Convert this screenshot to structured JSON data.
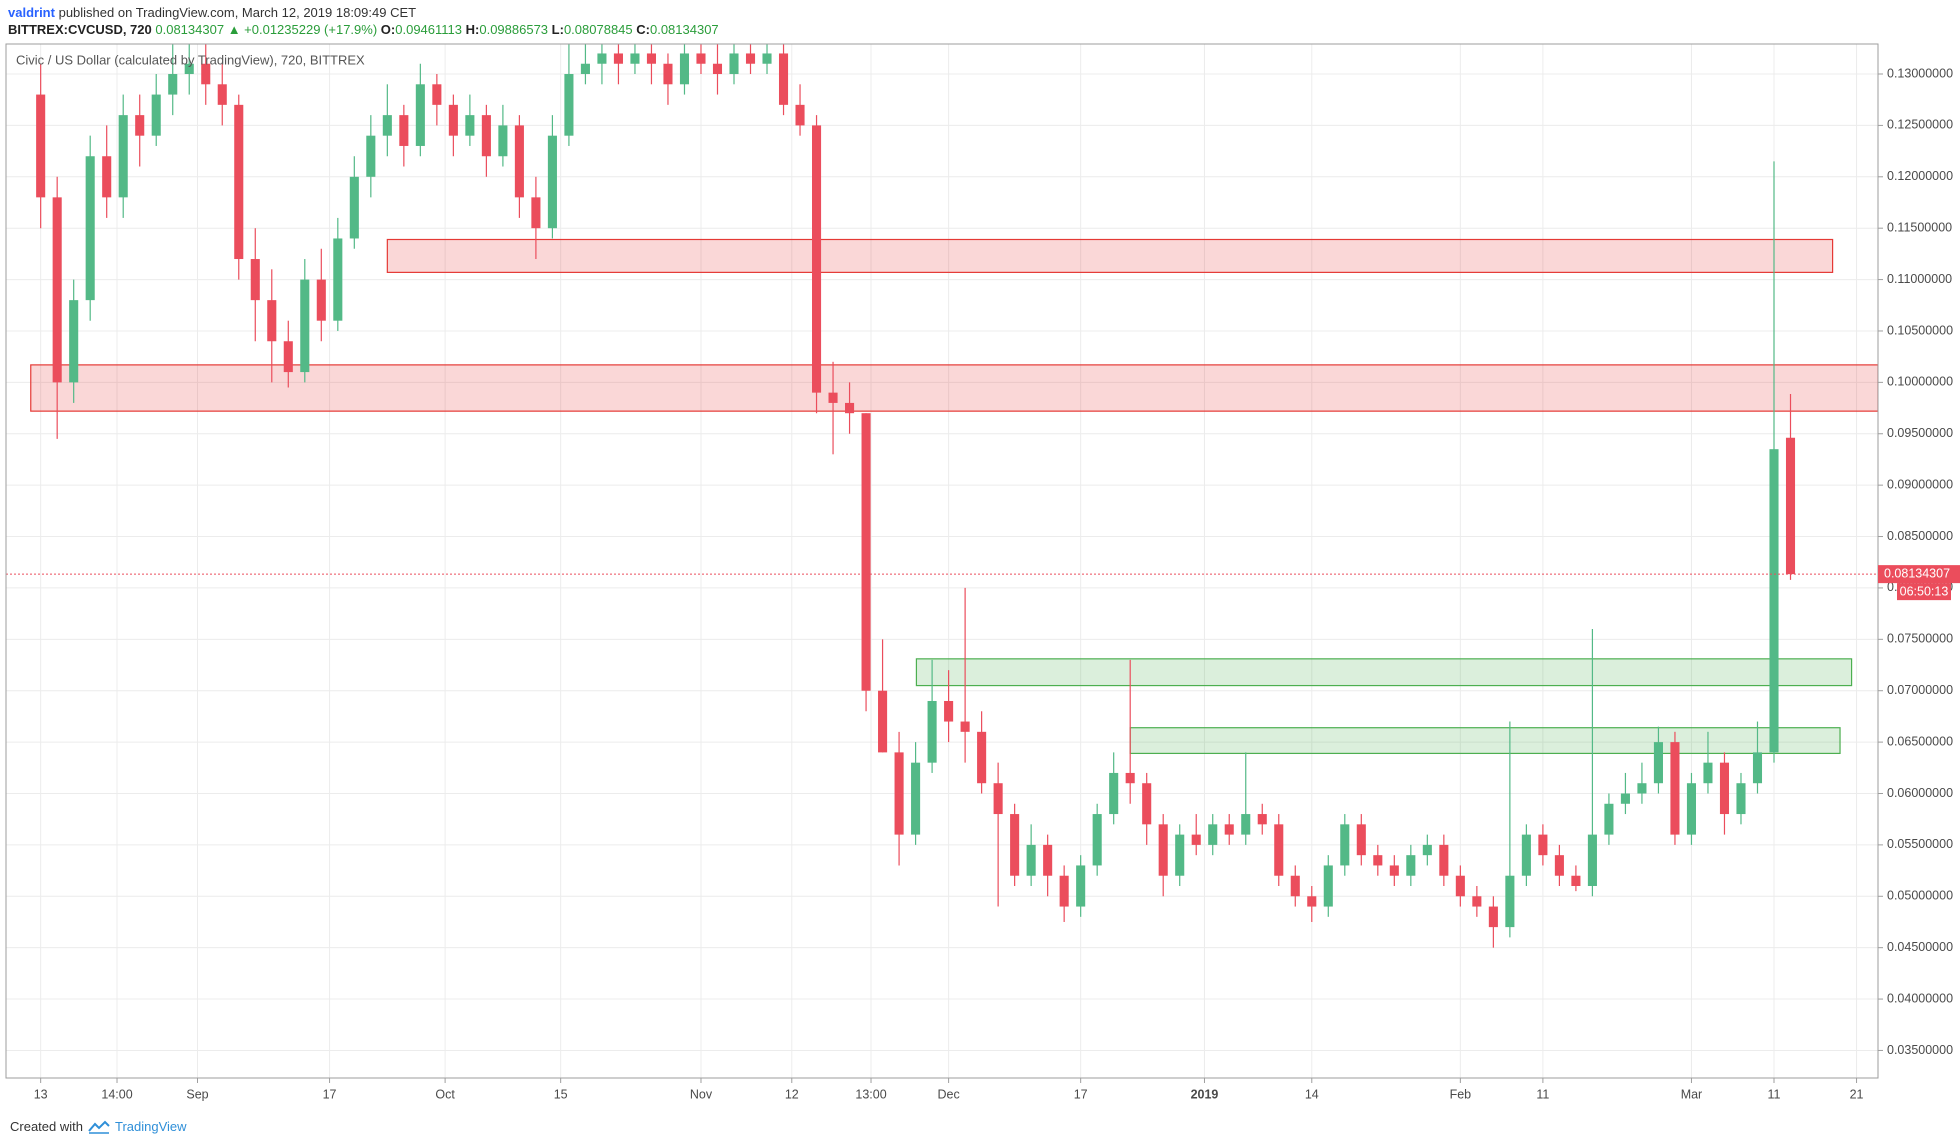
{
  "header": {
    "author": "valdrint",
    "published": "published on TradingView.com, March 12, 2019 18:09:49 CET",
    "symbol": "BITTREX:CVCUSD, 720",
    "change": "▲ +0.01235229 (+17.9%)",
    "o_label": "O:",
    "h_label": "H:",
    "l_label": "L:",
    "c_label": "C:"
  },
  "footer": {
    "text": "Created with",
    "brand": "TradingView"
  },
  "chart_data": {
    "type": "candlestick",
    "legend": "Civic / US Dollar (calculated by TradingView), 720, BITTREX",
    "countdown": "06:50:13",
    "up_color": "#53b987",
    "down_color": "#eb4d5c",
    "grid": true,
    "xlim": [
      -4.2,
      222.6
    ],
    "ylim": [
      0.03232,
      0.13292
    ],
    "xticks": [
      {
        "value": 0,
        "label": "13"
      },
      {
        "value": 9.25,
        "label": "14:00"
      },
      {
        "value": 19,
        "label": "Sep"
      },
      {
        "value": 35,
        "label": "17"
      },
      {
        "value": 49,
        "label": "Oct"
      },
      {
        "value": 63,
        "label": "15"
      },
      {
        "value": 80,
        "label": "Nov"
      },
      {
        "value": 91,
        "label": "12"
      },
      {
        "value": 100.6,
        "label": "13:00"
      },
      {
        "value": 110,
        "label": "Dec"
      },
      {
        "value": 126,
        "label": "17"
      },
      {
        "value": 141,
        "label": "2019"
      },
      {
        "value": 154,
        "label": "14"
      },
      {
        "value": 172,
        "label": "Feb"
      },
      {
        "value": 182,
        "label": "11"
      },
      {
        "value": 200,
        "label": "Mar"
      },
      {
        "value": 210,
        "label": "11"
      },
      {
        "value": 220,
        "label": "21"
      }
    ],
    "yticks": [
      {
        "value": 0.035,
        "label": "0.03500000"
      },
      {
        "value": 0.04,
        "label": "0.04000000"
      },
      {
        "value": 0.045,
        "label": "0.04500000"
      },
      {
        "value": 0.05,
        "label": "0.05000000"
      },
      {
        "value": 0.055,
        "label": "0.05500000"
      },
      {
        "value": 0.06,
        "label": "0.06000000"
      },
      {
        "value": 0.065,
        "label": "0.06500000"
      },
      {
        "value": 0.07,
        "label": "0.07000000"
      },
      {
        "value": 0.075,
        "label": "0.07500000"
      },
      {
        "value": 0.08,
        "label": "0.08000000"
      },
      {
        "value": 0.085,
        "label": "0.08500000"
      },
      {
        "value": 0.09,
        "label": "0.09000000"
      },
      {
        "value": 0.095,
        "label": "0.09500000"
      },
      {
        "value": 0.1,
        "label": "0.10000000"
      },
      {
        "value": 0.105,
        "label": "0.10500000"
      },
      {
        "value": 0.11,
        "label": "0.11000000"
      },
      {
        "value": 0.115,
        "label": "0.11500000"
      },
      {
        "value": 0.12,
        "label": "0.12000000"
      },
      {
        "value": 0.125,
        "label": "0.12500000"
      },
      {
        "value": 0.13,
        "label": "0.13000000"
      }
    ],
    "zones": [
      {
        "x": [
          42,
          217.1
        ],
        "y": [
          0.1107,
          0.1139
        ],
        "color": "#e53935"
      },
      {
        "x": [
          -1.2,
          222.6
        ],
        "y": [
          0.0972,
          0.1017
        ],
        "color": "#e53935"
      },
      {
        "x": [
          106.1,
          219.4
        ],
        "y": [
          0.0705,
          0.0731
        ],
        "color": "#4caf50"
      },
      {
        "x": [
          132,
          218
        ],
        "y": [
          0.0639,
          0.0664
        ],
        "color": "#4caf50"
      }
    ],
    "x": [
      0,
      2,
      4,
      6,
      8,
      10,
      12,
      14,
      16,
      18,
      20,
      22,
      24,
      26,
      28,
      30,
      32,
      34,
      36,
      38,
      40,
      42,
      44,
      46,
      48,
      50,
      52,
      54,
      56,
      58,
      60,
      62,
      64,
      66,
      68,
      70,
      72,
      74,
      76,
      78,
      80,
      82,
      84,
      86,
      88,
      90,
      92,
      94,
      96,
      98,
      100,
      102,
      104,
      106,
      108,
      110,
      112,
      114,
      116,
      118,
      120,
      122,
      124,
      126,
      128,
      130,
      132,
      134,
      136,
      138,
      140,
      142,
      144,
      146,
      148,
      150,
      152,
      154,
      156,
      158,
      160,
      162,
      164,
      166,
      168,
      170,
      172,
      174,
      176,
      178,
      180,
      182,
      184,
      186,
      188,
      190,
      192,
      194,
      196,
      198,
      200,
      202,
      204,
      206,
      208,
      210,
      212
    ],
    "ohlc": [
      [
        0.128,
        0.131,
        0.115,
        0.118
      ],
      [
        0.118,
        0.12,
        0.0945,
        0.1
      ],
      [
        0.1,
        0.11,
        0.098,
        0.108
      ],
      [
        0.108,
        0.124,
        0.106,
        0.122
      ],
      [
        0.122,
        0.125,
        0.116,
        0.118
      ],
      [
        0.118,
        0.128,
        0.116,
        0.126
      ],
      [
        0.126,
        0.128,
        0.121,
        0.124
      ],
      [
        0.124,
        0.13,
        0.123,
        0.128
      ],
      [
        0.128,
        0.133,
        0.126,
        0.13
      ],
      [
        0.13,
        0.134,
        0.128,
        0.131
      ],
      [
        0.131,
        0.134,
        0.127,
        0.129
      ],
      [
        0.129,
        0.131,
        0.125,
        0.127
      ],
      [
        0.127,
        0.128,
        0.11,
        0.112
      ],
      [
        0.112,
        0.115,
        0.104,
        0.108
      ],
      [
        0.108,
        0.111,
        0.1,
        0.104
      ],
      [
        0.104,
        0.106,
        0.0995,
        0.101
      ],
      [
        0.101,
        0.112,
        0.1,
        0.11
      ],
      [
        0.11,
        0.113,
        0.104,
        0.106
      ],
      [
        0.106,
        0.116,
        0.105,
        0.114
      ],
      [
        0.114,
        0.122,
        0.113,
        0.12
      ],
      [
        0.12,
        0.126,
        0.118,
        0.124
      ],
      [
        0.124,
        0.129,
        0.122,
        0.126
      ],
      [
        0.126,
        0.127,
        0.121,
        0.123
      ],
      [
        0.123,
        0.131,
        0.122,
        0.129
      ],
      [
        0.129,
        0.13,
        0.125,
        0.127
      ],
      [
        0.127,
        0.128,
        0.122,
        0.124
      ],
      [
        0.124,
        0.128,
        0.123,
        0.126
      ],
      [
        0.126,
        0.127,
        0.12,
        0.122
      ],
      [
        0.122,
        0.127,
        0.121,
        0.125
      ],
      [
        0.125,
        0.126,
        0.116,
        0.118
      ],
      [
        0.118,
        0.12,
        0.112,
        0.115
      ],
      [
        0.115,
        0.126,
        0.114,
        0.124
      ],
      [
        0.124,
        0.133,
        0.123,
        0.13
      ],
      [
        0.13,
        0.134,
        0.129,
        0.131
      ],
      [
        0.131,
        0.134,
        0.129,
        0.132
      ],
      [
        0.132,
        0.134,
        0.129,
        0.131
      ],
      [
        0.131,
        0.134,
        0.13,
        0.132
      ],
      [
        0.132,
        0.134,
        0.129,
        0.131
      ],
      [
        0.131,
        0.132,
        0.127,
        0.129
      ],
      [
        0.129,
        0.134,
        0.128,
        0.132
      ],
      [
        0.132,
        0.134,
        0.13,
        0.131
      ],
      [
        0.131,
        0.133,
        0.128,
        0.13
      ],
      [
        0.13,
        0.134,
        0.129,
        0.132
      ],
      [
        0.132,
        0.134,
        0.13,
        0.131
      ],
      [
        0.131,
        0.134,
        0.13,
        0.132
      ],
      [
        0.132,
        0.133,
        0.126,
        0.127
      ],
      [
        0.127,
        0.129,
        0.124,
        0.125
      ],
      [
        0.125,
        0.126,
        0.097,
        0.099
      ],
      [
        0.099,
        0.102,
        0.093,
        0.098
      ],
      [
        0.098,
        0.1,
        0.095,
        0.097
      ],
      [
        0.097,
        0.097,
        0.068,
        0.07
      ],
      [
        0.07,
        0.075,
        0.064,
        0.064
      ],
      [
        0.064,
        0.066,
        0.053,
        0.056
      ],
      [
        0.056,
        0.065,
        0.055,
        0.063
      ],
      [
        0.063,
        0.073,
        0.062,
        0.069
      ],
      [
        0.069,
        0.072,
        0.065,
        0.067
      ],
      [
        0.067,
        0.08,
        0.063,
        0.066
      ],
      [
        0.066,
        0.068,
        0.06,
        0.061
      ],
      [
        0.061,
        0.063,
        0.049,
        0.058
      ],
      [
        0.058,
        0.059,
        0.051,
        0.052
      ],
      [
        0.052,
        0.057,
        0.051,
        0.055
      ],
      [
        0.055,
        0.056,
        0.05,
        0.052
      ],
      [
        0.052,
        0.053,
        0.0475,
        0.049
      ],
      [
        0.049,
        0.054,
        0.048,
        0.053
      ],
      [
        0.053,
        0.059,
        0.052,
        0.058
      ],
      [
        0.058,
        0.064,
        0.057,
        0.062
      ],
      [
        0.062,
        0.073,
        0.059,
        0.061
      ],
      [
        0.061,
        0.062,
        0.055,
        0.057
      ],
      [
        0.057,
        0.058,
        0.05,
        0.052
      ],
      [
        0.052,
        0.057,
        0.051,
        0.056
      ],
      [
        0.056,
        0.058,
        0.054,
        0.055
      ],
      [
        0.055,
        0.058,
        0.054,
        0.057
      ],
      [
        0.057,
        0.058,
        0.055,
        0.056
      ],
      [
        0.056,
        0.064,
        0.055,
        0.058
      ],
      [
        0.058,
        0.059,
        0.056,
        0.057
      ],
      [
        0.057,
        0.058,
        0.051,
        0.052
      ],
      [
        0.052,
        0.053,
        0.049,
        0.05
      ],
      [
        0.05,
        0.051,
        0.0475,
        0.049
      ],
      [
        0.049,
        0.054,
        0.048,
        0.053
      ],
      [
        0.053,
        0.058,
        0.052,
        0.057
      ],
      [
        0.057,
        0.058,
        0.053,
        0.054
      ],
      [
        0.054,
        0.055,
        0.052,
        0.053
      ],
      [
        0.053,
        0.054,
        0.051,
        0.052
      ],
      [
        0.052,
        0.055,
        0.051,
        0.054
      ],
      [
        0.054,
        0.056,
        0.053,
        0.055
      ],
      [
        0.055,
        0.056,
        0.051,
        0.052
      ],
      [
        0.052,
        0.053,
        0.049,
        0.05
      ],
      [
        0.05,
        0.051,
        0.048,
        0.049
      ],
      [
        0.049,
        0.05,
        0.045,
        0.047
      ],
      [
        0.047,
        0.067,
        0.046,
        0.052
      ],
      [
        0.052,
        0.057,
        0.051,
        0.056
      ],
      [
        0.056,
        0.057,
        0.053,
        0.054
      ],
      [
        0.054,
        0.055,
        0.051,
        0.052
      ],
      [
        0.052,
        0.053,
        0.0505,
        0.051
      ],
      [
        0.051,
        0.076,
        0.05,
        0.056
      ],
      [
        0.056,
        0.06,
        0.055,
        0.059
      ],
      [
        0.059,
        0.062,
        0.058,
        0.06
      ],
      [
        0.06,
        0.063,
        0.059,
        0.061
      ],
      [
        0.061,
        0.0665,
        0.06,
        0.065
      ],
      [
        0.065,
        0.066,
        0.055,
        0.056
      ],
      [
        0.056,
        0.062,
        0.055,
        0.061
      ],
      [
        0.061,
        0.066,
        0.06,
        0.063
      ],
      [
        0.063,
        0.064,
        0.056,
        0.058
      ],
      [
        0.058,
        0.062,
        0.057,
        0.061
      ],
      [
        0.061,
        0.067,
        0.06,
        0.064
      ],
      [
        0.064,
        0.1215,
        0.063,
        0.0935
      ],
      [
        0.09461113,
        0.09886573,
        0.08078845,
        0.08134307
      ]
    ]
  }
}
